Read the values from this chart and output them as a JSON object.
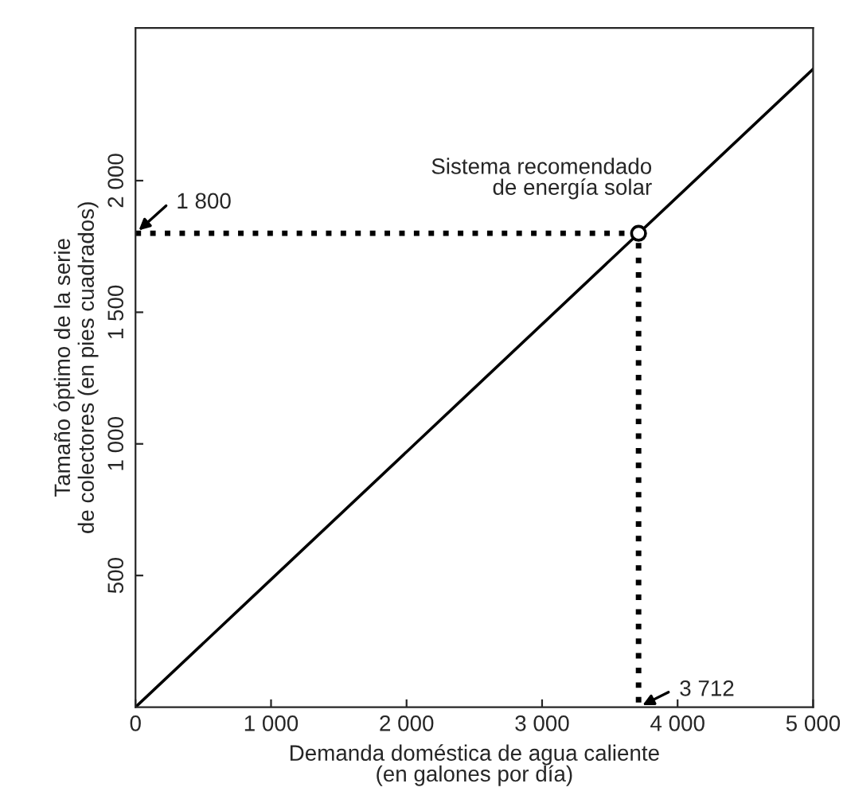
{
  "chart_data": {
    "type": "line",
    "xlabel": "Demanda doméstica de agua caliente\n(en galones por día)",
    "ylabel": "Tamaño óptimo de la serie\nde colectores (en pies cuadrados)",
    "series": [
      {
        "x": [
          0,
          5000
        ],
        "values": [
          0,
          2424
        ],
        "color": "#000000",
        "line_style": "solid",
        "marker": "none"
      },
      {
        "x": [
          0,
          3712,
          3712
        ],
        "values": [
          1800,
          1800,
          0
        ],
        "color": "#000000",
        "line_style": "dotted",
        "marker": "none"
      },
      {
        "type": "scatter",
        "x": [
          3712
        ],
        "values": [
          1800
        ],
        "color": "#000000",
        "marker": "circle"
      }
    ],
    "xlim": [
      0,
      5000
    ],
    "ylim": [
      0,
      2580
    ],
    "xticks": [
      0,
      {
        "value": 1000,
        "label": "1 000"
      },
      {
        "value": 2000,
        "label": "2 000"
      },
      {
        "value": 3000,
        "label": "3 000"
      },
      {
        "value": 4000,
        "label": "4 000"
      },
      {
        "value": 5000,
        "label": "5 000"
      }
    ],
    "yticks": [
      500,
      {
        "value": 1000,
        "label": "1 000"
      },
      {
        "value": 1500,
        "label": "1 500"
      },
      {
        "value": 2000,
        "label": "2 000"
      }
    ],
    "annotations": [
      "Sistema recomendado\nde energía solar",
      "1 800",
      "3 712"
    ],
    "grid": false,
    "legend": false
  }
}
